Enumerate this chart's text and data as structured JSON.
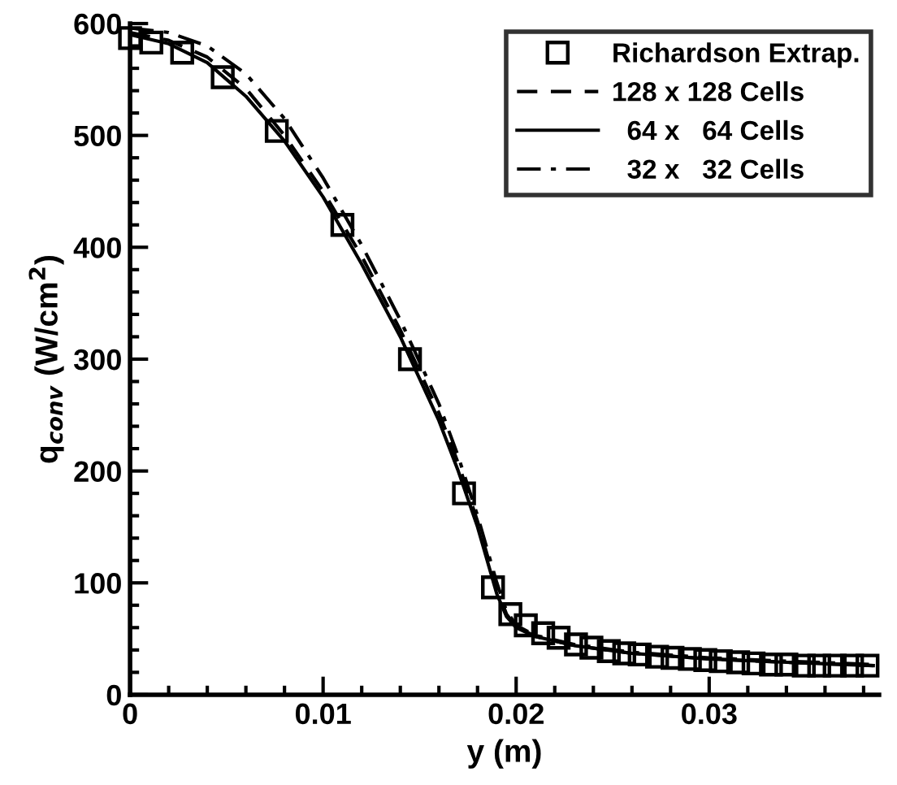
{
  "chart_data": {
    "type": "line",
    "xlabel": "y (m)",
    "ylabel": "q$_{conv}$ (W/cm$^{2}$)",
    "xlim": [
      0,
      0.0388
    ],
    "ylim": [
      0,
      600
    ],
    "xticks": [
      0,
      0.01,
      0.02,
      0.03
    ],
    "yticks": [
      0,
      100,
      200,
      300,
      400,
      500,
      600
    ],
    "grid": false,
    "legend": "top right",
    "series": [
      {
        "name": "Richardson Extrap.",
        "type": "scatter",
        "marker": "square",
        "color": "#000000",
        "x": [
          0,
          0.0011,
          0.0027,
          0.0048,
          0.0076,
          0.011,
          0.0145,
          0.0173,
          0.0188,
          0.0197,
          0.0205,
          0.0214,
          0.0222,
          0.0231,
          0.0239,
          0.0248,
          0.0256,
          0.0264,
          0.0273,
          0.0281,
          0.029,
          0.0298,
          0.0306,
          0.0315,
          0.0323,
          0.0332,
          0.034,
          0.0349,
          0.0357,
          0.0365,
          0.0374,
          0.0382
        ],
        "values": [
          587,
          583,
          574,
          552,
          504,
          420,
          300,
          180,
          96,
          72,
          62,
          55,
          51,
          45,
          42,
          39,
          37,
          36,
          34,
          33,
          32,
          31,
          30,
          29,
          28,
          27,
          27,
          26,
          26,
          26,
          26,
          26
        ]
      },
      {
        "name": "128 x 128 Cells",
        "type": "line",
        "line_style": "dashed",
        "color": "#000000",
        "x": [
          0,
          0.002,
          0.004,
          0.006,
          0.008,
          0.01,
          0.012,
          0.014,
          0.016,
          0.017,
          0.018,
          0.019,
          0.0195,
          0.02,
          0.021,
          0.023,
          0.026,
          0.03,
          0.034,
          0.0385
        ],
        "values": [
          592,
          585,
          570,
          542,
          500,
          450,
          392,
          326,
          252,
          207,
          155,
          95,
          72,
          61,
          52,
          44,
          37,
          32,
          29,
          26
        ]
      },
      {
        "name": "  64 x   64 Cells",
        "type": "line",
        "line_style": "solid",
        "color": "#000000",
        "x": [
          0,
          0.002,
          0.004,
          0.006,
          0.008,
          0.01,
          0.012,
          0.014,
          0.016,
          0.017,
          0.018,
          0.019,
          0.0195,
          0.02,
          0.021,
          0.023,
          0.026,
          0.03,
          0.034,
          0.0385
        ],
        "values": [
          590,
          582,
          565,
          535,
          495,
          445,
          385,
          320,
          245,
          200,
          150,
          90,
          70,
          60,
          52,
          44,
          37,
          32,
          29,
          26
        ]
      },
      {
        "name": "  32 x   32 Cells",
        "type": "line",
        "line_style": "dashdot",
        "color": "#000000",
        "x": [
          0,
          0.002,
          0.004,
          0.006,
          0.008,
          0.01,
          0.012,
          0.014,
          0.016,
          0.017,
          0.018,
          0.019,
          0.0195,
          0.02,
          0.021,
          0.023,
          0.026,
          0.03,
          0.034,
          0.0385
        ],
        "values": [
          596,
          592,
          580,
          555,
          515,
          462,
          402,
          335,
          260,
          213,
          160,
          100,
          75,
          62,
          53,
          45,
          38,
          33,
          30,
          27
        ]
      }
    ]
  }
}
